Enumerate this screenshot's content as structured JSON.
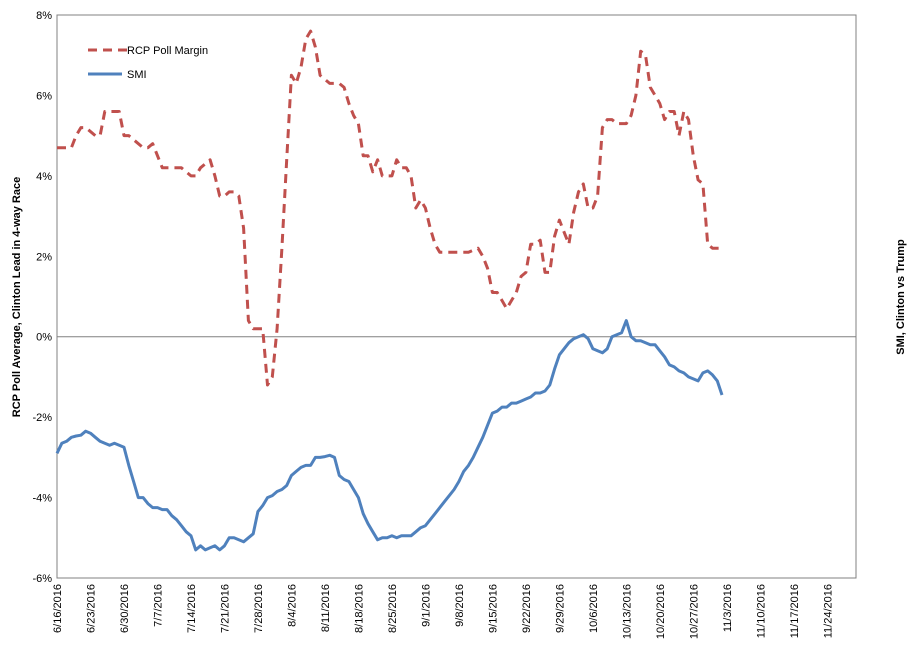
{
  "chart_data": {
    "type": "line",
    "ylabel_left": "RCP Poll Average, Clinton Lead in 4-way Race",
    "ylabel_right": "SMI, Clinton vs Trump",
    "ylim": [
      -6,
      8
    ],
    "y_ticks": [
      "8%",
      "6%",
      "4%",
      "2%",
      "0%",
      "-2%",
      "-4%",
      "-6%"
    ],
    "y_tick_values": [
      8,
      6,
      4,
      2,
      0,
      -2,
      -4,
      -6
    ],
    "x_range": [
      "2016-06-16",
      "2016-11-30"
    ],
    "x_ticks": [
      "6/16/2016",
      "6/23/2016",
      "6/30/2016",
      "7/7/2016",
      "7/14/2016",
      "7/21/2016",
      "7/28/2016",
      "8/4/2016",
      "8/11/2016",
      "8/18/2016",
      "8/25/2016",
      "9/1/2016",
      "9/8/2016",
      "9/15/2016",
      "9/22/2016",
      "9/29/2016",
      "10/6/2016",
      "10/13/2016",
      "10/20/2016",
      "10/27/2016",
      "11/3/2016",
      "11/10/2016",
      "11/17/2016",
      "11/24/2016"
    ],
    "zero_line": true,
    "legend_position": "top-left",
    "series": [
      {
        "name": "RCP Poll Margin",
        "color": "#c0504d",
        "style": "dashed",
        "x": [
          "2016-06-16",
          "2016-06-18",
          "2016-06-19",
          "2016-06-20",
          "2016-06-21",
          "2016-06-22",
          "2016-06-24",
          "2016-06-25",
          "2016-06-26",
          "2016-06-27",
          "2016-06-29",
          "2016-06-30",
          "2016-07-01",
          "2016-07-02",
          "2016-07-04",
          "2016-07-05",
          "2016-07-06",
          "2016-07-08",
          "2016-07-09",
          "2016-07-11",
          "2016-07-12",
          "2016-07-14",
          "2016-07-15",
          "2016-07-16",
          "2016-07-18",
          "2016-07-19",
          "2016-07-20",
          "2016-07-21",
          "2016-07-22",
          "2016-07-23",
          "2016-07-24",
          "2016-07-25",
          "2016-07-26",
          "2016-07-27",
          "2016-07-28",
          "2016-07-29",
          "2016-07-30",
          "2016-07-31",
          "2016-08-01",
          "2016-08-02",
          "2016-08-03",
          "2016-08-04",
          "2016-08-05",
          "2016-08-06",
          "2016-08-07",
          "2016-08-08",
          "2016-08-09",
          "2016-08-10",
          "2016-08-12",
          "2016-08-14",
          "2016-08-15",
          "2016-08-16",
          "2016-08-17",
          "2016-08-18",
          "2016-08-19",
          "2016-08-20",
          "2016-08-21",
          "2016-08-22",
          "2016-08-23",
          "2016-08-24",
          "2016-08-25",
          "2016-08-26",
          "2016-08-27",
          "2016-08-28",
          "2016-08-29",
          "2016-08-30",
          "2016-08-31",
          "2016-09-01",
          "2016-09-02",
          "2016-09-03",
          "2016-09-04",
          "2016-09-05",
          "2016-09-06",
          "2016-09-08",
          "2016-09-10",
          "2016-09-12",
          "2016-09-13",
          "2016-09-14",
          "2016-09-15",
          "2016-09-16",
          "2016-09-17",
          "2016-09-18",
          "2016-09-19",
          "2016-09-20",
          "2016-09-21",
          "2016-09-22",
          "2016-09-23",
          "2016-09-24",
          "2016-09-25",
          "2016-09-26",
          "2016-09-27",
          "2016-09-28",
          "2016-09-29",
          "2016-09-30",
          "2016-10-01",
          "2016-10-02",
          "2016-10-03",
          "2016-10-04",
          "2016-10-05",
          "2016-10-06",
          "2016-10-07",
          "2016-10-08",
          "2016-10-09",
          "2016-10-10",
          "2016-10-11",
          "2016-10-12",
          "2016-10-13",
          "2016-10-14",
          "2016-10-15",
          "2016-10-16",
          "2016-10-17",
          "2016-10-18",
          "2016-10-19",
          "2016-10-20",
          "2016-10-21",
          "2016-10-22",
          "2016-10-23",
          "2016-10-24",
          "2016-10-25",
          "2016-10-26",
          "2016-10-27",
          "2016-10-28",
          "2016-10-29",
          "2016-10-30",
          "2016-10-31",
          "2016-11-01",
          "2016-11-02"
        ],
        "values": [
          4.7,
          4.7,
          4.7,
          5.0,
          5.2,
          5.2,
          5.0,
          5.0,
          5.6,
          5.6,
          5.6,
          5.0,
          5.0,
          4.9,
          4.7,
          4.7,
          4.8,
          4.2,
          4.2,
          4.2,
          4.2,
          4.0,
          4.0,
          4.2,
          4.4,
          4.0,
          3.5,
          3.5,
          3.6,
          3.6,
          3.5,
          2.7,
          0.4,
          0.2,
          0.2,
          0.2,
          -1.2,
          -1.0,
          0.2,
          2.2,
          4.4,
          6.5,
          6.3,
          6.7,
          7.4,
          7.6,
          7.2,
          6.5,
          6.3,
          6.3,
          6.2,
          5.8,
          5.5,
          5.3,
          4.5,
          4.5,
          4.1,
          4.4,
          4.0,
          4.0,
          4.0,
          4.4,
          4.2,
          4.2,
          4.0,
          3.2,
          3.4,
          3.2,
          2.7,
          2.3,
          2.1,
          2.1,
          2.1,
          2.1,
          2.1,
          2.2,
          2.0,
          1.7,
          1.1,
          1.1,
          0.9,
          0.7,
          0.9,
          1.1,
          1.5,
          1.6,
          2.3,
          2.3,
          2.4,
          1.6,
          1.6,
          2.5,
          2.9,
          2.6,
          2.3,
          3.1,
          3.6,
          3.8,
          3.2,
          3.2,
          3.5,
          5.2,
          5.4,
          5.4,
          5.3,
          5.3,
          5.3,
          5.5,
          6.0,
          7.1,
          7.0,
          6.2,
          6.0,
          5.8,
          5.4,
          5.6,
          5.6,
          5.0,
          5.6,
          5.4,
          4.5,
          3.9,
          3.8,
          2.3,
          2.2,
          2.2,
          2.2
        ]
      },
      {
        "name": "SMI",
        "color": "#4f81bd",
        "style": "solid",
        "x": [
          "2016-06-16",
          "2016-06-17",
          "2016-06-18",
          "2016-06-19",
          "2016-06-20",
          "2016-06-21",
          "2016-06-22",
          "2016-06-23",
          "2016-06-24",
          "2016-06-25",
          "2016-06-26",
          "2016-06-27",
          "2016-06-28",
          "2016-06-29",
          "2016-06-30",
          "2016-07-01",
          "2016-07-02",
          "2016-07-03",
          "2016-07-04",
          "2016-07-05",
          "2016-07-06",
          "2016-07-07",
          "2016-07-08",
          "2016-07-09",
          "2016-07-10",
          "2016-07-11",
          "2016-07-12",
          "2016-07-13",
          "2016-07-14",
          "2016-07-15",
          "2016-07-16",
          "2016-07-17",
          "2016-07-18",
          "2016-07-19",
          "2016-07-20",
          "2016-07-21",
          "2016-07-22",
          "2016-07-23",
          "2016-07-24",
          "2016-07-25",
          "2016-07-26",
          "2016-07-27",
          "2016-07-28",
          "2016-07-29",
          "2016-07-30",
          "2016-07-31",
          "2016-08-01",
          "2016-08-02",
          "2016-08-03",
          "2016-08-04",
          "2016-08-05",
          "2016-08-06",
          "2016-08-07",
          "2016-08-08",
          "2016-08-09",
          "2016-08-10",
          "2016-08-11",
          "2016-08-12",
          "2016-08-13",
          "2016-08-14",
          "2016-08-15",
          "2016-08-16",
          "2016-08-17",
          "2016-08-18",
          "2016-08-19",
          "2016-08-20",
          "2016-08-21",
          "2016-08-22",
          "2016-08-23",
          "2016-08-24",
          "2016-08-25",
          "2016-08-26",
          "2016-08-27",
          "2016-08-28",
          "2016-08-29",
          "2016-08-30",
          "2016-08-31",
          "2016-09-01",
          "2016-09-02",
          "2016-09-03",
          "2016-09-04",
          "2016-09-05",
          "2016-09-06",
          "2016-09-07",
          "2016-09-08",
          "2016-09-09",
          "2016-09-10",
          "2016-09-11",
          "2016-09-12",
          "2016-09-13",
          "2016-09-14",
          "2016-09-15",
          "2016-09-16",
          "2016-09-17",
          "2016-09-18",
          "2016-09-19",
          "2016-09-20",
          "2016-09-21",
          "2016-09-22",
          "2016-09-23",
          "2016-09-24",
          "2016-09-25",
          "2016-09-26",
          "2016-09-27",
          "2016-09-28",
          "2016-09-29",
          "2016-09-30",
          "2016-10-01",
          "2016-10-02",
          "2016-10-03",
          "2016-10-04",
          "2016-10-05",
          "2016-10-06",
          "2016-10-07",
          "2016-10-08",
          "2016-10-09",
          "2016-10-10",
          "2016-10-11",
          "2016-10-12",
          "2016-10-13",
          "2016-10-14",
          "2016-10-15",
          "2016-10-16",
          "2016-10-17",
          "2016-10-18",
          "2016-10-19",
          "2016-10-20",
          "2016-10-21",
          "2016-10-22",
          "2016-10-23",
          "2016-10-24",
          "2016-10-25",
          "2016-10-26",
          "2016-10-27",
          "2016-10-28",
          "2016-10-29",
          "2016-10-30",
          "2016-10-31",
          "2016-11-01",
          "2016-11-02"
        ],
        "values": [
          -2.9,
          -2.65,
          -2.6,
          -2.5,
          -2.47,
          -2.45,
          -2.35,
          -2.4,
          -2.5,
          -2.6,
          -2.65,
          -2.7,
          -2.65,
          -2.7,
          -2.75,
          -3.2,
          -3.6,
          -4.0,
          -4.0,
          -4.15,
          -4.25,
          -4.25,
          -4.3,
          -4.3,
          -4.45,
          -4.55,
          -4.7,
          -4.85,
          -4.95,
          -5.3,
          -5.2,
          -5.3,
          -5.25,
          -5.2,
          -5.3,
          -5.2,
          -5.0,
          -5.0,
          -5.05,
          -5.1,
          -5.0,
          -4.9,
          -4.35,
          -4.2,
          -4.0,
          -3.95,
          -3.85,
          -3.8,
          -3.7,
          -3.45,
          -3.35,
          -3.25,
          -3.2,
          -3.2,
          -3.0,
          -3.0,
          -2.98,
          -2.95,
          -3.0,
          -3.45,
          -3.55,
          -3.6,
          -3.8,
          -4.0,
          -4.4,
          -4.65,
          -4.85,
          -5.05,
          -5.0,
          -5.0,
          -4.95,
          -5.0,
          -4.95,
          -4.95,
          -4.95,
          -4.85,
          -4.75,
          -4.7,
          -4.55,
          -4.4,
          -4.25,
          -4.1,
          -3.95,
          -3.8,
          -3.6,
          -3.35,
          -3.2,
          -3.0,
          -2.75,
          -2.5,
          -2.2,
          -1.9,
          -1.85,
          -1.75,
          -1.75,
          -1.65,
          -1.65,
          -1.6,
          -1.55,
          -1.5,
          -1.4,
          -1.4,
          -1.35,
          -1.2,
          -0.8,
          -0.45,
          -0.3,
          -0.15,
          -0.05,
          0.0,
          0.05,
          -0.05,
          -0.3,
          -0.35,
          -0.4,
          -0.3,
          0.0,
          0.05,
          0.1,
          0.4,
          0.0,
          -0.1,
          -0.1,
          -0.15,
          -0.2,
          -0.2,
          -0.35,
          -0.5,
          -0.7,
          -0.75,
          -0.85,
          -0.9,
          -1.0,
          -1.05,
          -1.1,
          -0.9,
          -0.85,
          -0.95,
          -1.1,
          -1.45
        ]
      }
    ]
  }
}
